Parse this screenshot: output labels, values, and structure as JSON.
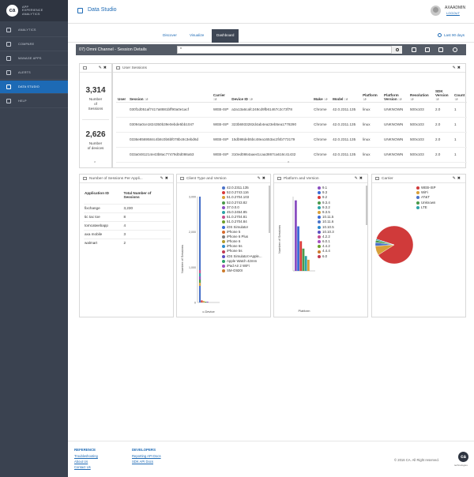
{
  "app": {
    "logo_mark": "ca",
    "logo_tech": "technologies",
    "brand_line1": "APP",
    "brand_line2": "EXPERIENCE",
    "brand_line3": "ANALYTICS"
  },
  "nav": [
    {
      "label": "ANALYTICS",
      "icon": "analytics-icon",
      "active": false
    },
    {
      "label": "COMPARE",
      "icon": "compare-icon",
      "active": false
    },
    {
      "label": "MANAGE APPS",
      "icon": "manage-apps-icon",
      "active": false
    },
    {
      "label": "ALERTS",
      "icon": "alerts-icon",
      "active": false
    },
    {
      "label": "DATA STUDIO",
      "icon": "data-studio-icon",
      "active": true
    },
    {
      "label": "HELP",
      "icon": "help-icon",
      "active": false
    }
  ],
  "header": {
    "title": "Data Studio",
    "username": "AXAADMIN",
    "logout": "LOGOUT"
  },
  "subtabs": {
    "discover": "Discover",
    "visualize": "Visualize",
    "dashboard": "Dashboard",
    "active": "Dashboard",
    "last_days": "Last 90 days"
  },
  "dashboard": {
    "title": "07) Omni Channel - Session Details",
    "search_value": "*"
  },
  "kpi": {
    "sessions_value": "3,314",
    "sessions_label1": "Number",
    "sessions_label2": "of",
    "sessions_label3": "Sessions",
    "devices_value": "2,626",
    "devices_label1": "Number",
    "devices_label2": "of devices"
  },
  "user_sessions": {
    "title": "User Sessions",
    "columns": [
      "User",
      "Session",
      "Carrier",
      "Device ID",
      "Make",
      "Model",
      "Platform",
      "Platform Version",
      "Resolution",
      "SDK Version",
      "Count"
    ],
    "rows": [
      [
        "",
        "030f1d051af7417a8881bff90a0e1acf",
        "WEB-ISP",
        "a2a13a6cafc248cd9fb61467c2c73f78",
        "Chrome",
        "42.0.2311.135",
        "linux",
        "UNKNOWN",
        "500x103",
        "2.0",
        "1"
      ],
      [
        "",
        "03094a0ce1824350b39e0ebde5bb1047",
        "WEB-ISP",
        "323b6933282d4ab4ea23eb5ea1778290",
        "Chrome",
        "42.0.2311.135",
        "linux",
        "UNKNOWN",
        "500x103",
        "2.0",
        "1"
      ],
      [
        "",
        "0336e8569584c4b8c0b6bf078bc8c3ebd6d",
        "WEB-ISP",
        "15db98deb5bc48ea1653ac2f4b773179",
        "Chrome",
        "42.0.2311.135",
        "linux",
        "UNKNOWN",
        "500x103",
        "2.0",
        "1"
      ],
      [
        "",
        "033a0481214e43b8ac77479d0d086a53",
        "WEB-ISP",
        "310ed0864aae41caa3867ca616c41432",
        "Chrome",
        "42.0.2311.135",
        "linux",
        "UNKNOWN",
        "500x103",
        "2.0",
        "1"
      ]
    ]
  },
  "sessions_per_app": {
    "title": "Number of Sessions Per Appli...",
    "col_app": "Application ID",
    "col_total_1": "Total Number of",
    "col_total_2": "Sessions",
    "rows": [
      {
        "app": "fixchange",
        "total": "3,230"
      },
      {
        "app": "tic tac toe",
        "total": "8"
      },
      {
        "app": "tomcatwebapp",
        "total": "4"
      },
      {
        "app": "axa mobile",
        "total": "3"
      },
      {
        "app": "walmart",
        "total": "2"
      }
    ]
  },
  "client_chart": {
    "title": "Client Type and Version",
    "ylabel": "Number of Sessions",
    "yticks": [
      "3,000",
      "2,000",
      "1,000",
      "0"
    ],
    "xlabel": "c.Device",
    "legend": [
      {
        "label": "42.0.2311.135",
        "color": "#4a72c9"
      },
      {
        "label": "52.0.2743.116",
        "color": "#d93a3a"
      },
      {
        "label": "51.0.2704.103",
        "color": "#d8a03a"
      },
      {
        "label": "52.0.2743.82",
        "color": "#4a9a4a"
      },
      {
        "label": "37.0.0.0",
        "color": "#8a4fc1"
      },
      {
        "label": "45.0.2454.85",
        "color": "#2ca3a8"
      },
      {
        "label": "51.0.2704.81",
        "color": "#c34f8d"
      },
      {
        "label": "51.0.2704.84",
        "color": "#6e9f2a"
      },
      {
        "label": "iOS Simulator",
        "color": "#3b6bd6"
      },
      {
        "label": "iPhone 5",
        "color": "#d86a2b"
      },
      {
        "label": "iPhone 6 Plus",
        "color": "#7a7a7a"
      },
      {
        "label": "iPhone 6",
        "color": "#b39b2b"
      },
      {
        "label": "iPhone 6s",
        "color": "#2b8acc"
      },
      {
        "label": "iPhone 5s",
        "color": "#c23a52"
      },
      {
        "label": "iOS Simulator>Apple...",
        "color": "#5b4fc1"
      },
      {
        "label": "Apple Watch 42mm",
        "color": "#2aa36a"
      },
      {
        "label": "iPad Air 2 WiFi",
        "color": "#a54fc1"
      },
      {
        "label": "SM-G920I",
        "color": "#cc7a2b"
      }
    ]
  },
  "platform_chart": {
    "title": "Platform and Version",
    "ylabel": "Number of Sessions",
    "xlabel": "Platform",
    "legend": [
      {
        "label": "9.1",
        "color": "#8a4fc1"
      },
      {
        "label": "9.3",
        "color": "#3b6bd6"
      },
      {
        "label": "9.2",
        "color": "#d93a3a"
      },
      {
        "label": "9.3.4",
        "color": "#4a9a4a"
      },
      {
        "label": "9.3.2",
        "color": "#2ca3a8"
      },
      {
        "label": "9.3.5",
        "color": "#d8a03a"
      },
      {
        "label": "10.11.5",
        "color": "#3b6bd6"
      },
      {
        "label": "10.11.6",
        "color": "#4a72c9"
      },
      {
        "label": "10.10.5",
        "color": "#2b8acc"
      },
      {
        "label": "10.10.3",
        "color": "#5b4fc1"
      },
      {
        "label": "4.2.2",
        "color": "#c34f8d"
      },
      {
        "label": "6.0.1",
        "color": "#a54fc1"
      },
      {
        "label": "4.4.2",
        "color": "#6e9f2a"
      },
      {
        "label": "4.4.4",
        "color": "#cc7a2b"
      },
      {
        "label": "6.0",
        "color": "#c23a52"
      }
    ]
  },
  "carrier_chart": {
    "title": "Carrier",
    "legend": [
      {
        "label": "WEB-ISP",
        "color": "#d03a3a"
      },
      {
        "label": "WiFi",
        "color": "#d8a03a"
      },
      {
        "label": "AT&T",
        "color": "#4a72c9"
      },
      {
        "label": "Unknown",
        "color": "#4a9a4a"
      },
      {
        "label": "LTE",
        "color": "#2ca3a8"
      }
    ]
  },
  "chart_data": [
    {
      "type": "bar",
      "title": "Client Type and Version",
      "ylabel": "Number of Sessions",
      "xlabel": "c.Device",
      "ylim": [
        0,
        3000
      ],
      "categories": [
        "42.0.2311.135",
        "52.0.2743.116",
        "51.0.2704.103",
        "52.0.2743.82",
        "37.0.0.0"
      ],
      "values": [
        3000,
        60,
        40,
        20,
        10
      ]
    },
    {
      "type": "bar",
      "title": "Platform and Version",
      "ylabel": "Number of Sessions",
      "xlabel": "Platform",
      "categories": [
        "9.1",
        "9.3",
        "9.2",
        "9.3.4",
        "9.3.2",
        "9.3.5"
      ],
      "values": [
        95,
        60,
        40,
        30,
        20,
        15
      ]
    },
    {
      "type": "pie",
      "title": "Carrier",
      "categories": [
        "WEB-ISP",
        "WiFi",
        "AT&T",
        "Unknown",
        "LTE"
      ],
      "values": [
        86,
        8,
        3,
        2,
        1
      ]
    }
  ],
  "footer": {
    "reference_head": "REFERENCE",
    "ref_links": [
      "Troubleshooting",
      "About Us",
      "Contact Us"
    ],
    "developers_head": "DEVELOPERS",
    "dev_links": [
      "Reporting API Docs",
      "SDK API Docs"
    ],
    "copyright": "© 2016 CA. All Right reserved.",
    "logo_mark": "ca",
    "logo_sub": "technologies"
  }
}
